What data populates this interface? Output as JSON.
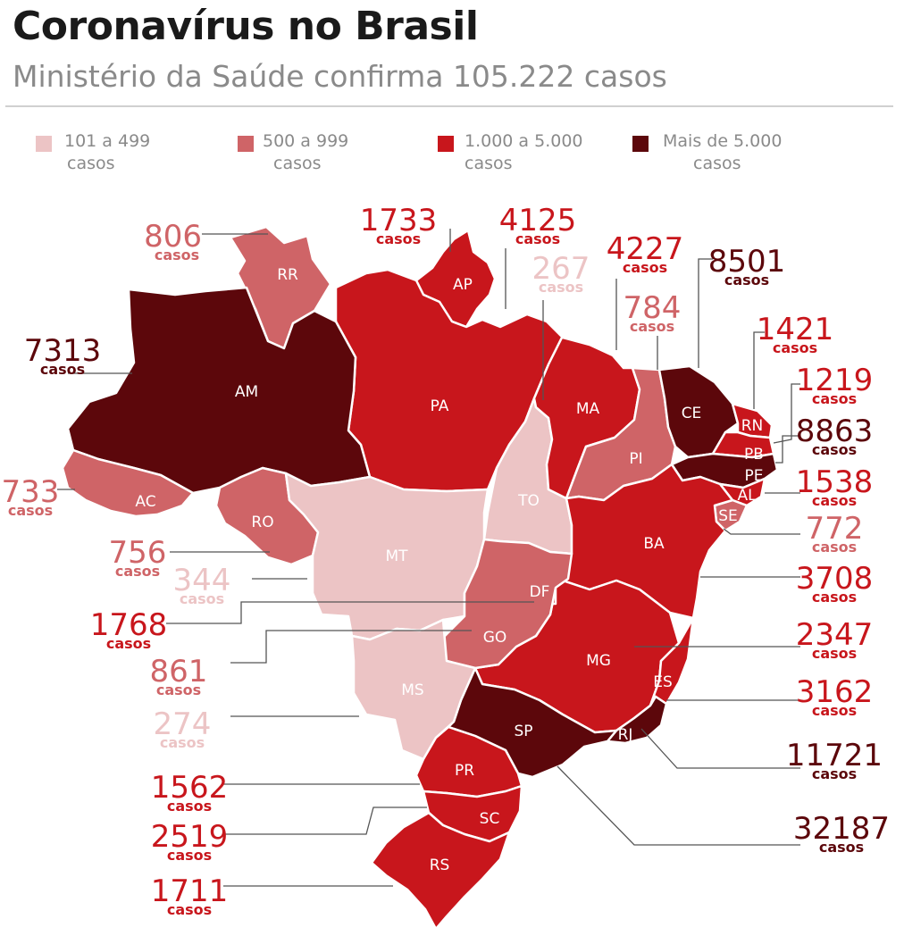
{
  "title": "Coronavírus no Brasil",
  "subtitle": "Ministério da Saúde confirma 105.222 casos",
  "colors": {
    "c1": "#ecc4c5",
    "c2": "#cf6467",
    "c3": "#c8161c",
    "c4": "#5c070b"
  },
  "legend": [
    {
      "line1": "101 a 499",
      "line2": "casos",
      "cls": "c1"
    },
    {
      "line1": "500 a 999",
      "line2": "casos",
      "cls": "c2"
    },
    {
      "line1": "1.000 a 5.000",
      "line2": "casos",
      "cls": "c3"
    },
    {
      "line1": "Mais de 5.000",
      "line2": "casos",
      "cls": "c4"
    }
  ],
  "unit_label": "casos",
  "states": [
    {
      "uf": "RR",
      "cases": "806",
      "cls": "c2"
    },
    {
      "uf": "AP",
      "cases": "1733",
      "cls": "c3"
    },
    {
      "uf": "PA",
      "cases": "4125",
      "cls": "c3"
    },
    {
      "uf": "TO",
      "cases": "267",
      "cls": "c1"
    },
    {
      "uf": "MA",
      "cases": "4227",
      "cls": "c3"
    },
    {
      "uf": "PI",
      "cases": "784",
      "cls": "c2"
    },
    {
      "uf": "CE",
      "cases": "8501",
      "cls": "c4"
    },
    {
      "uf": "RN",
      "cases": "1421",
      "cls": "c3"
    },
    {
      "uf": "PB",
      "cases": "1219",
      "cls": "c3"
    },
    {
      "uf": "PE",
      "cases": "8863",
      "cls": "c4"
    },
    {
      "uf": "AL",
      "cases": "1538",
      "cls": "c3"
    },
    {
      "uf": "SE",
      "cases": "772",
      "cls": "c2"
    },
    {
      "uf": "BA",
      "cases": "3708",
      "cls": "c3"
    },
    {
      "uf": "MG",
      "cases": "2347",
      "cls": "c3"
    },
    {
      "uf": "ES",
      "cases": "3162",
      "cls": "c3"
    },
    {
      "uf": "RJ",
      "cases": "11721",
      "cls": "c4"
    },
    {
      "uf": "SP",
      "cases": "32187",
      "cls": "c4"
    },
    {
      "uf": "AM",
      "cases": "7313",
      "cls": "c4"
    },
    {
      "uf": "AC",
      "cases": "733",
      "cls": "c2"
    },
    {
      "uf": "RO",
      "cases": "756",
      "cls": "c2"
    },
    {
      "uf": "MT",
      "cases": "344",
      "cls": "c1"
    },
    {
      "uf": "DF",
      "cases": "1768",
      "cls": "c3"
    },
    {
      "uf": "GO",
      "cases": "861",
      "cls": "c2"
    },
    {
      "uf": "MS",
      "cases": "274",
      "cls": "c1"
    },
    {
      "uf": "PR",
      "cases": "1562",
      "cls": "c3"
    },
    {
      "uf": "SC",
      "cases": "2519",
      "cls": "c3"
    },
    {
      "uf": "RS",
      "cases": "1711",
      "cls": "c3"
    }
  ]
}
